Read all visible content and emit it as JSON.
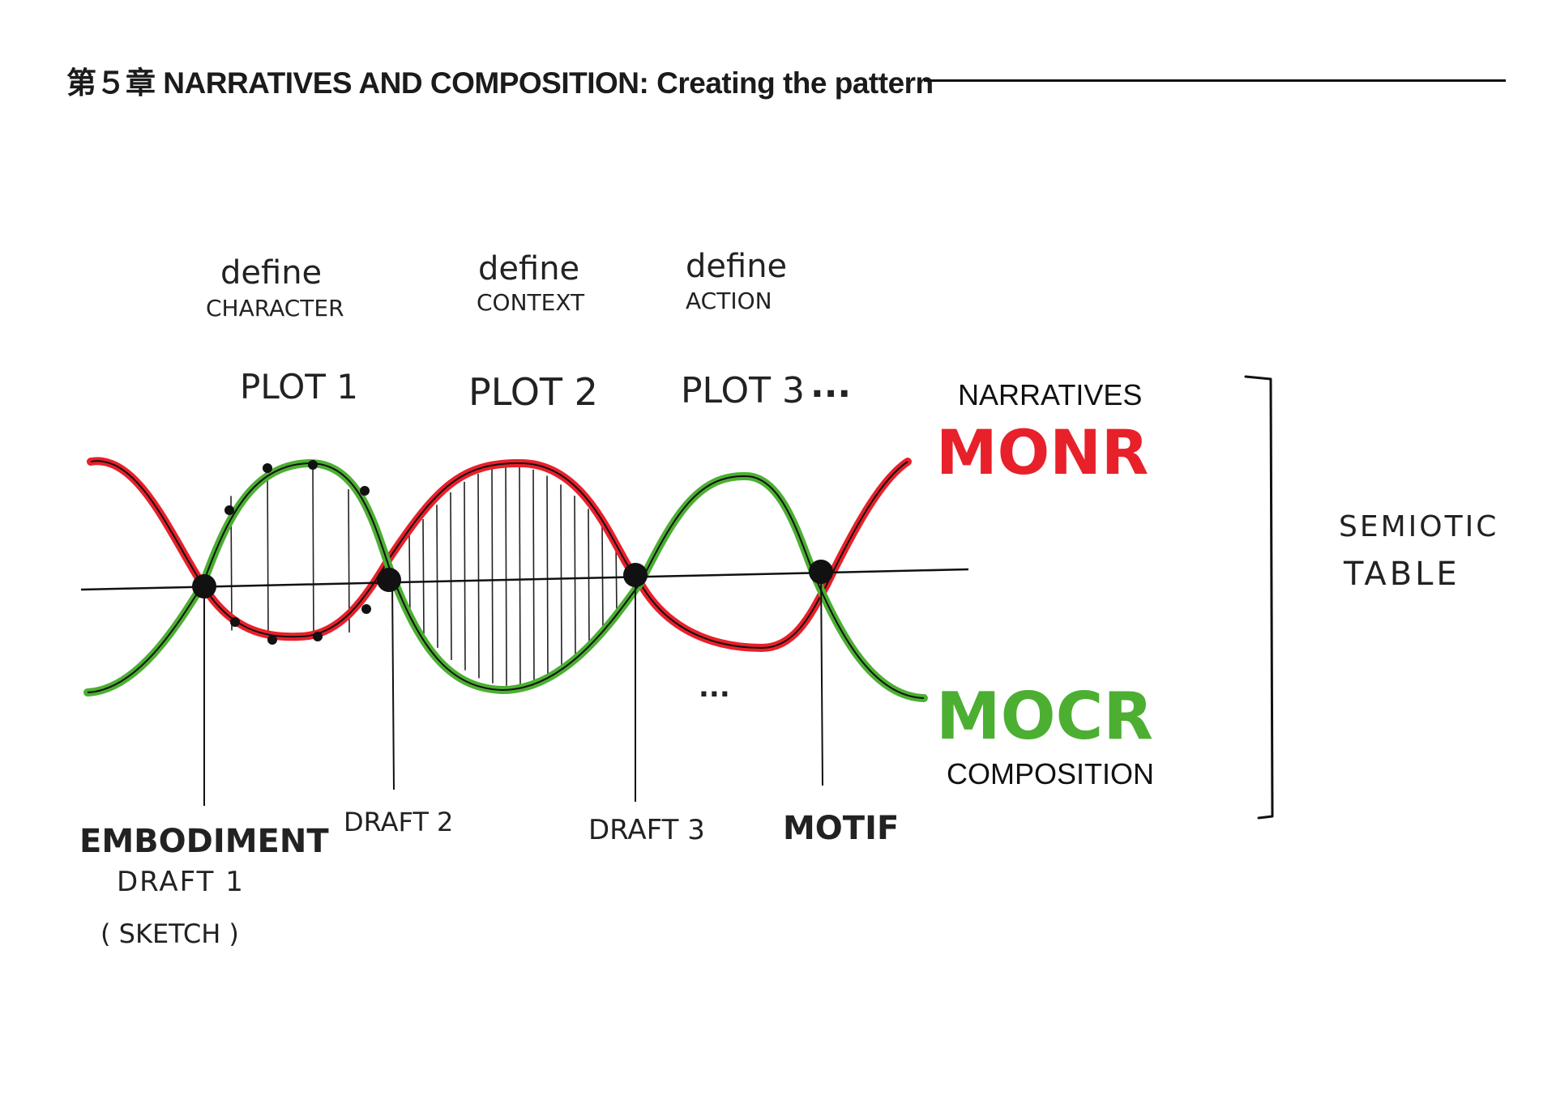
{
  "header": {
    "title": "第５章  NARRATIVES AND COMPOSITION: Creating the pattern"
  },
  "definitions": [
    {
      "word": "define",
      "term": "CHARACTER"
    },
    {
      "word": "define",
      "term": "CONTEXT"
    },
    {
      "word": "define",
      "term": "ACTION"
    }
  ],
  "plots": [
    "PLOT 1",
    "PLOT 2",
    "PLOT 3",
    "..."
  ],
  "narratives_label": "NARRATIVES",
  "monr_label": "MONR",
  "mocr_label": "MOCR",
  "composition_label": "COMPOSITION",
  "semiotic_table": [
    "SEMIOTIC",
    "TABLE"
  ],
  "middle_ellipsis": "...",
  "drafts": {
    "embodiment": "EMBODIMENT",
    "draft1": "DRAFT 1",
    "sketch": "( SKETCH )",
    "draft2": "DRAFT 2",
    "draft3": "DRAFT 3",
    "motif": "MOTIF"
  },
  "colors": {
    "monr": "#e8202a",
    "mocr": "#4caf32",
    "ink": "#111111"
  }
}
